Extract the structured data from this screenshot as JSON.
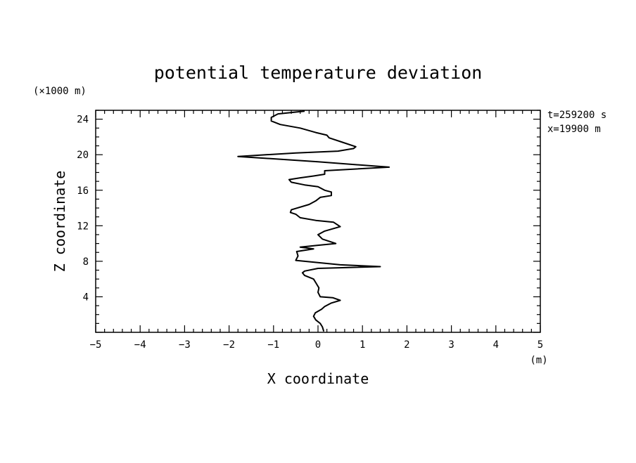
{
  "chart_data": {
    "type": "line",
    "title": "potential temperature deviation",
    "xlabel": "X coordinate",
    "ylabel": "Z coordinate",
    "x_unit": "(m)",
    "y_unit": "(×1000 m)",
    "annotations": [
      "t=259200 s",
      "x=19900 m"
    ],
    "xlim": [
      -5,
      5
    ],
    "ylim": [
      0,
      25
    ],
    "x_ticks": [
      -5,
      -4,
      -3,
      -2,
      -1,
      0,
      1,
      2,
      3,
      4,
      5
    ],
    "x_tick_labels": [
      "−5",
      "−4",
      "−3",
      "−2",
      "−1",
      "0",
      "1",
      "2",
      "3",
      "4",
      "5"
    ],
    "y_ticks": [
      4,
      8,
      12,
      16,
      20,
      24
    ],
    "y_tick_labels": [
      "4",
      "8",
      "12",
      "16",
      "20",
      "24"
    ],
    "grid": false,
    "series": [
      {
        "points": [
          [
            0.13,
            0.1
          ],
          [
            0.1,
            0.6
          ],
          [
            0.05,
            1.0
          ],
          [
            -0.05,
            1.4
          ],
          [
            -0.1,
            1.8
          ],
          [
            -0.06,
            2.2
          ],
          [
            0.08,
            2.6
          ],
          [
            0.15,
            2.9
          ],
          [
            0.3,
            3.3
          ],
          [
            0.5,
            3.6
          ],
          [
            0.33,
            3.9
          ],
          [
            0.05,
            4.0
          ],
          [
            0.0,
            4.5
          ],
          [
            0.02,
            5.0
          ],
          [
            -0.05,
            5.6
          ],
          [
            -0.1,
            6.0
          ],
          [
            -0.3,
            6.4
          ],
          [
            -0.35,
            6.7
          ],
          [
            -0.3,
            6.9
          ],
          [
            0.0,
            7.2
          ],
          [
            1.4,
            7.4
          ],
          [
            0.5,
            7.6
          ],
          [
            -0.1,
            7.9
          ],
          [
            -0.5,
            8.1
          ],
          [
            -0.45,
            8.6
          ],
          [
            -0.48,
            9.1
          ],
          [
            -0.1,
            9.4
          ],
          [
            -0.4,
            9.6
          ],
          [
            0.0,
            9.8
          ],
          [
            0.4,
            10.0
          ],
          [
            0.1,
            10.5
          ],
          [
            0.0,
            11.0
          ],
          [
            0.15,
            11.4
          ],
          [
            0.5,
            11.9
          ],
          [
            0.35,
            12.4
          ],
          [
            -0.05,
            12.6
          ],
          [
            -0.4,
            12.9
          ],
          [
            -0.5,
            13.3
          ],
          [
            -0.62,
            13.5
          ],
          [
            -0.6,
            13.8
          ],
          [
            -0.2,
            14.4
          ],
          [
            -0.05,
            14.8
          ],
          [
            0.05,
            15.2
          ],
          [
            0.3,
            15.4
          ],
          [
            0.3,
            15.8
          ],
          [
            0.15,
            16.0
          ],
          [
            0.0,
            16.4
          ],
          [
            -0.3,
            16.6
          ],
          [
            -0.6,
            16.9
          ],
          [
            -0.65,
            17.2
          ],
          [
            -0.4,
            17.4
          ],
          [
            -0.1,
            17.6
          ],
          [
            0.15,
            17.8
          ],
          [
            0.15,
            18.2
          ],
          [
            1.6,
            18.6
          ],
          [
            0.0,
            19.2
          ],
          [
            -1.8,
            19.8
          ],
          [
            -0.5,
            20.2
          ],
          [
            0.45,
            20.4
          ],
          [
            0.8,
            20.7
          ],
          [
            0.85,
            20.9
          ],
          [
            0.55,
            21.4
          ],
          [
            0.25,
            21.9
          ],
          [
            0.2,
            22.2
          ],
          [
            -0.05,
            22.5
          ],
          [
            -0.4,
            23.0
          ],
          [
            -0.85,
            23.4
          ],
          [
            -1.05,
            23.8
          ],
          [
            -1.05,
            24.2
          ],
          [
            -0.9,
            24.6
          ],
          [
            -0.5,
            24.8
          ],
          [
            -0.3,
            24.9
          ]
        ]
      }
    ]
  }
}
